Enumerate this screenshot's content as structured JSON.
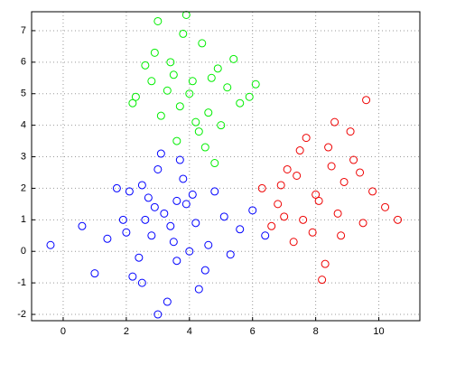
{
  "chart_data": {
    "type": "scatter",
    "xlim": [
      -1,
      11.3
    ],
    "ylim": [
      -2.2,
      7.6
    ],
    "xticks": [
      0,
      2,
      4,
      6,
      8,
      10
    ],
    "yticks": [
      -2,
      -1,
      0,
      1,
      2,
      3,
      4,
      5,
      6,
      7
    ],
    "grid": true,
    "series": [
      {
        "color": "#0000ff",
        "x": [
          3.2,
          2.8,
          4.1,
          3.6,
          2.5,
          1.9,
          4.6,
          3.0,
          3.9,
          2.2,
          5.1,
          3.4,
          1.4,
          4.3,
          2.7,
          3.7,
          5.6,
          2.1,
          3.3,
          4.0,
          0.6,
          -0.4,
          1.0,
          2.9,
          4.8,
          3.5,
          2.4,
          6.0,
          3.8,
          1.7,
          4.5,
          3.1,
          2.6,
          5.3,
          3.6,
          4.2,
          2.0,
          3.0,
          6.4,
          2.5
        ],
        "values": [
          1.2,
          0.5,
          1.8,
          -0.3,
          2.1,
          1.0,
          0.2,
          2.6,
          1.5,
          -0.8,
          1.1,
          0.8,
          0.4,
          -1.2,
          1.7,
          2.9,
          0.7,
          1.9,
          -1.6,
          0.0,
          0.8,
          0.2,
          -0.7,
          1.4,
          1.9,
          0.3,
          -0.2,
          1.3,
          2.3,
          2.0,
          -0.6,
          3.1,
          1.0,
          -0.1,
          1.6,
          0.9,
          0.6,
          -2.0,
          0.5,
          -1.0
        ]
      },
      {
        "color": "#00ee00",
        "x": [
          4.0,
          3.5,
          4.6,
          2.9,
          5.2,
          4.3,
          3.8,
          2.3,
          4.9,
          3.1,
          5.6,
          4.1,
          3.6,
          2.6,
          4.4,
          5.0,
          3.3,
          2.2,
          4.7,
          3.9,
          6.1,
          3.0,
          4.5,
          3.7,
          5.4,
          2.8,
          4.2,
          3.4,
          5.9,
          4.8
        ],
        "values": [
          5.0,
          5.6,
          4.4,
          6.3,
          5.2,
          3.8,
          6.9,
          4.9,
          5.8,
          4.3,
          4.7,
          5.4,
          3.5,
          5.9,
          6.6,
          4.0,
          5.1,
          4.7,
          5.5,
          7.5,
          5.3,
          7.3,
          3.3,
          4.6,
          6.1,
          5.4,
          4.1,
          6.0,
          4.9,
          2.8
        ]
      },
      {
        "color": "#ee0000",
        "x": [
          8.0,
          7.4,
          8.7,
          9.2,
          6.8,
          7.9,
          8.4,
          9.8,
          7.1,
          8.2,
          6.3,
          9.5,
          7.7,
          8.9,
          10.2,
          7.3,
          8.6,
          6.6,
          9.1,
          8.1,
          7.6,
          10.6,
          8.3,
          6.9,
          9.4,
          7.5,
          8.8,
          9.6,
          7.0,
          8.5
        ],
        "values": [
          1.8,
          2.4,
          1.2,
          2.9,
          1.5,
          0.6,
          3.3,
          1.9,
          2.6,
          -0.9,
          2.0,
          0.9,
          3.6,
          2.2,
          1.4,
          0.3,
          4.1,
          0.8,
          3.8,
          1.6,
          1.0,
          1.0,
          -0.4,
          2.1,
          2.5,
          3.2,
          0.5,
          4.8,
          1.1,
          2.7
        ]
      }
    ]
  }
}
